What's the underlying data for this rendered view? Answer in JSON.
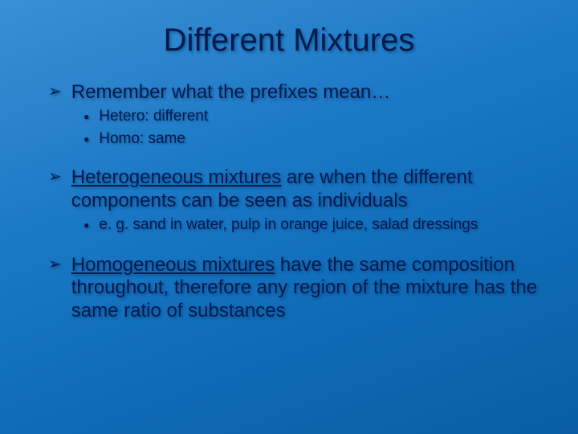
{
  "slide": {
    "type": "presentation-slide",
    "background_gradient": [
      "#3a8fd4",
      "#1977c4",
      "#0e6ab5",
      "#0a5da4"
    ],
    "text_color": "#001a4d",
    "shadow_color": "rgba(0,40,90,0.45)",
    "font_family": "Arial",
    "title": {
      "text": "Different Mixtures",
      "fontsize": 40
    },
    "bullets": [
      {
        "level": 1,
        "marker": "➢",
        "text_plain": "Remember what the prefixes mean…",
        "fontsize": 24
      },
      {
        "level": 2,
        "marker": "●",
        "text_plain": "Hetero:  different",
        "fontsize": 19
      },
      {
        "level": 2,
        "marker": "●",
        "text_plain": "Homo:  same",
        "fontsize": 19
      },
      {
        "level": 1,
        "marker": "➢",
        "underline_span": "Heterogeneous mixtures",
        "text_after": " are when the different components can be seen as individuals",
        "fontsize": 24
      },
      {
        "level": 2,
        "marker": "●",
        "text_plain": "e. g.  sand in water, pulp in orange juice, salad dressings",
        "fontsize": 19
      },
      {
        "level": 1,
        "marker": "➢",
        "underline_span": "Homogeneous mixtures",
        "text_after": " have the same composition throughout, therefore any region of the mixture has the same ratio of substances",
        "fontsize": 24
      }
    ]
  }
}
